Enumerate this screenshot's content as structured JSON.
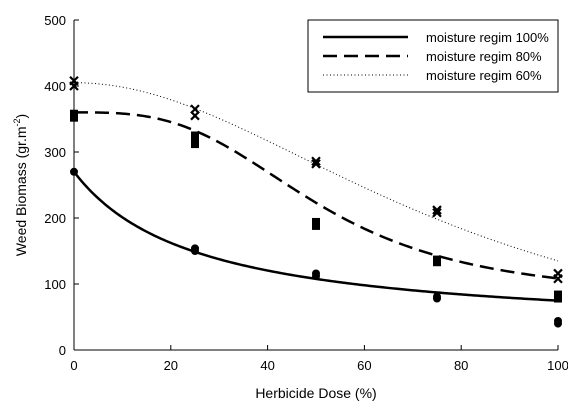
{
  "chart_data": {
    "type": "scatter",
    "title": "",
    "xlabel": "Herbicide Dose (%)",
    "ylabel": "Weed Biomass (gr.m",
    "ylabel_superscript": "-2",
    "ylabel_close": ")",
    "xlim": [
      0,
      100
    ],
    "ylim": [
      0,
      500
    ],
    "x_ticks": [
      0,
      20,
      40,
      60,
      80,
      100
    ],
    "y_ticks": [
      0,
      100,
      200,
      300,
      400,
      500
    ],
    "grid": false,
    "legend_position": "top-right",
    "series": [
      {
        "name": "moisture regim 100%",
        "line_style": "solid",
        "marker": "circle",
        "color": "#000000",
        "points": [
          [
            0,
            270
          ],
          [
            25,
            150
          ],
          [
            25,
            154
          ],
          [
            50,
            112
          ],
          [
            50,
            116
          ],
          [
            75,
            78
          ],
          [
            75,
            81
          ],
          [
            100,
            40
          ],
          [
            100,
            44
          ]
        ],
        "curve": {
          "min": 25,
          "max": 270,
          "ed50": 25.5,
          "slope": 1
        }
      },
      {
        "name": "moisture regim 80%",
        "line_style": "dashed",
        "marker": "square",
        "color": "#000000",
        "points": [
          [
            0,
            352
          ],
          [
            0,
            358
          ],
          [
            25,
            312
          ],
          [
            25,
            320
          ],
          [
            25,
            325
          ],
          [
            50,
            188
          ],
          [
            50,
            194
          ],
          [
            75,
            133
          ],
          [
            75,
            137
          ],
          [
            100,
            78
          ],
          [
            100,
            84
          ]
        ],
        "curve": {
          "min": 77.5,
          "max": 360,
          "ed50": 51,
          "slope": 3.11
        }
      },
      {
        "name": "moisture regim 60%",
        "line_style": "dotted",
        "marker": "x",
        "color": "#000000",
        "points": [
          [
            0,
            400
          ],
          [
            0,
            408
          ],
          [
            25,
            355
          ],
          [
            25,
            365
          ],
          [
            50,
            282
          ],
          [
            50,
            286
          ],
          [
            75,
            208
          ],
          [
            75,
            212
          ],
          [
            100,
            108
          ],
          [
            100,
            116
          ]
        ],
        "curve": {
          "min": -40,
          "max": 405,
          "ed50": 80.5,
          "slope": 2.0
        }
      }
    ]
  }
}
